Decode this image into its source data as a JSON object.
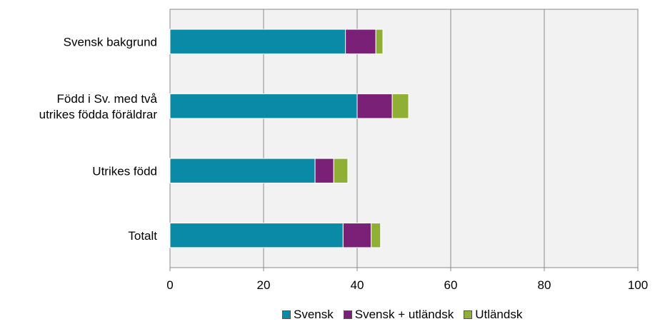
{
  "chart_data": {
    "type": "bar",
    "orientation": "horizontal",
    "stacked": true,
    "categories": [
      [
        "Svensk bakgrund"
      ],
      [
        "Född i Sv. med två",
        "utrikes födda föräldrar"
      ],
      [
        "Utrikes född"
      ],
      [
        "Totalt"
      ]
    ],
    "series": [
      {
        "name": "Svensk",
        "color": "#0a8aa6",
        "values": [
          37.5,
          40,
          31,
          37
        ]
      },
      {
        "name": "Svensk + utländsk",
        "color": "#7b2077",
        "values": [
          6.5,
          7.5,
          4,
          6
        ]
      },
      {
        "name": "Utländsk",
        "color": "#8fb034",
        "values": [
          1.5,
          3.5,
          3,
          2
        ]
      }
    ],
    "xlim": [
      0,
      100
    ],
    "xticks": [
      0,
      20,
      40,
      60,
      80,
      100
    ],
    "grid": true,
    "legend_position": "bottom",
    "title": "",
    "xlabel": "",
    "ylabel": ""
  }
}
